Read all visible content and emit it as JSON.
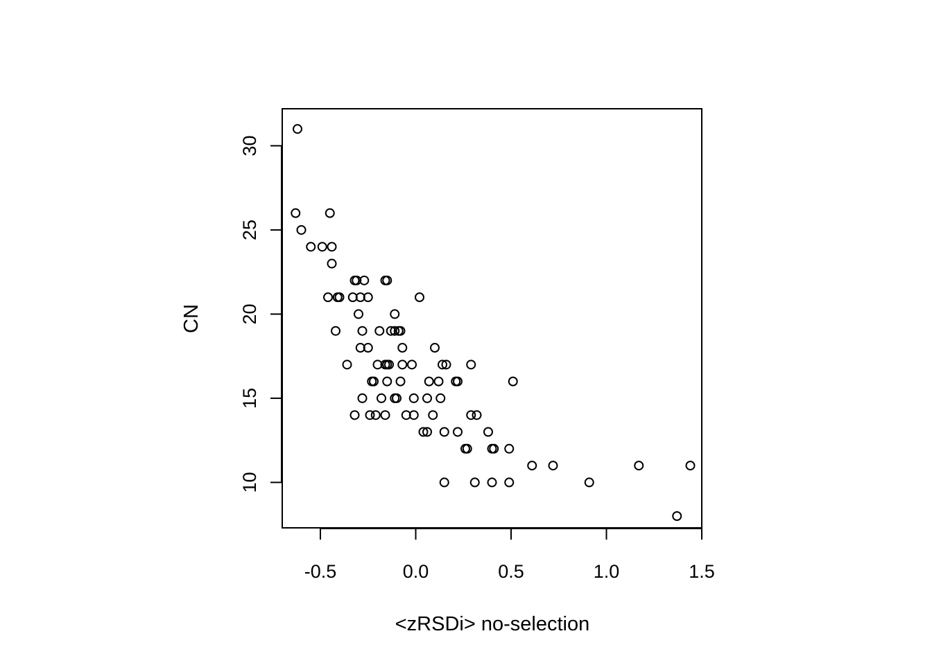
{
  "chart_data": {
    "type": "scatter",
    "title": "",
    "xlabel": "<zRSDi> no-selection",
    "ylabel": "CN",
    "xlim": [
      -0.7,
      1.5
    ],
    "ylim": [
      7.3,
      32.2
    ],
    "xticks": [
      -0.5,
      0.0,
      0.5,
      1.0,
      1.5
    ],
    "xtick_labels": [
      "-0.5",
      "0.0",
      "0.5",
      "1.0",
      "1.5"
    ],
    "yticks": [
      10,
      15,
      20,
      25,
      30
    ],
    "ytick_labels": [
      "10",
      "15",
      "20",
      "25",
      "30"
    ],
    "grid": false,
    "marker": "open-circle",
    "marker_color": "#000000",
    "points": [
      [
        -0.62,
        31
      ],
      [
        -0.63,
        26
      ],
      [
        -0.45,
        26
      ],
      [
        -0.6,
        25
      ],
      [
        -0.55,
        24
      ],
      [
        -0.49,
        24
      ],
      [
        -0.44,
        24
      ],
      [
        -0.44,
        23
      ],
      [
        -0.32,
        22
      ],
      [
        -0.31,
        22
      ],
      [
        -0.27,
        22
      ],
      [
        -0.16,
        22
      ],
      [
        -0.15,
        22
      ],
      [
        -0.46,
        21
      ],
      [
        -0.41,
        21
      ],
      [
        -0.4,
        21
      ],
      [
        -0.33,
        21
      ],
      [
        -0.29,
        21
      ],
      [
        -0.25,
        21
      ],
      [
        0.02,
        21
      ],
      [
        -0.3,
        20
      ],
      [
        -0.11,
        20
      ],
      [
        -0.42,
        19
      ],
      [
        -0.28,
        19
      ],
      [
        -0.19,
        19
      ],
      [
        -0.13,
        19
      ],
      [
        -0.11,
        19
      ],
      [
        -0.09,
        19
      ],
      [
        -0.08,
        19
      ],
      [
        -0.29,
        18
      ],
      [
        -0.25,
        18
      ],
      [
        -0.07,
        18
      ],
      [
        0.1,
        18
      ],
      [
        -0.36,
        17
      ],
      [
        -0.2,
        17
      ],
      [
        -0.16,
        17
      ],
      [
        -0.15,
        17
      ],
      [
        -0.14,
        17
      ],
      [
        -0.07,
        17
      ],
      [
        -0.02,
        17
      ],
      [
        0.14,
        17
      ],
      [
        0.16,
        17
      ],
      [
        0.29,
        17
      ],
      [
        -0.23,
        16
      ],
      [
        -0.22,
        16
      ],
      [
        -0.15,
        16
      ],
      [
        -0.08,
        16
      ],
      [
        0.07,
        16
      ],
      [
        0.12,
        16
      ],
      [
        0.21,
        16
      ],
      [
        0.22,
        16
      ],
      [
        0.51,
        16
      ],
      [
        -0.28,
        15
      ],
      [
        -0.18,
        15
      ],
      [
        -0.11,
        15
      ],
      [
        -0.1,
        15
      ],
      [
        -0.01,
        15
      ],
      [
        0.06,
        15
      ],
      [
        0.13,
        15
      ],
      [
        -0.32,
        14
      ],
      [
        -0.24,
        14
      ],
      [
        -0.21,
        14
      ],
      [
        -0.16,
        14
      ],
      [
        -0.05,
        14
      ],
      [
        -0.01,
        14
      ],
      [
        0.09,
        14
      ],
      [
        0.29,
        14
      ],
      [
        0.32,
        14
      ],
      [
        0.04,
        13
      ],
      [
        0.06,
        13
      ],
      [
        0.15,
        13
      ],
      [
        0.22,
        13
      ],
      [
        0.38,
        13
      ],
      [
        0.26,
        12
      ],
      [
        0.27,
        12
      ],
      [
        0.4,
        12
      ],
      [
        0.41,
        12
      ],
      [
        0.49,
        12
      ],
      [
        0.61,
        11
      ],
      [
        0.72,
        11
      ],
      [
        1.17,
        11
      ],
      [
        1.44,
        11
      ],
      [
        0.15,
        10
      ],
      [
        0.31,
        10
      ],
      [
        0.4,
        10
      ],
      [
        0.49,
        10
      ],
      [
        0.91,
        10
      ],
      [
        1.37,
        8
      ]
    ]
  }
}
